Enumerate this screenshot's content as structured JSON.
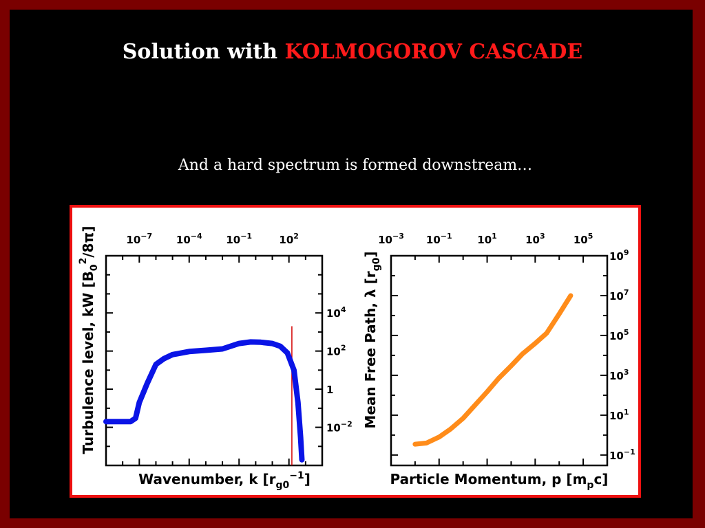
{
  "slide": {
    "title_prefix": "Solution with ",
    "title_highlight": "KOLMOGOROV CASCADE",
    "subtitle": "And a hard spectrum is formed downstream…"
  },
  "colors": {
    "background": "#000000",
    "frame": "#7a0000",
    "title_highlight": "#ff1a1a",
    "figure_border": "#ee1111",
    "left_curve": "#0a14e6",
    "right_curve": "#ff8c1a",
    "marker_line": "#d40000"
  },
  "chart_data": [
    {
      "type": "line",
      "xlabel": "Wavenumber, k [r",
      "xlabel_sub": "g0",
      "xlabel_sup": "−1",
      "xlabel_end": "]",
      "ylabel": "Turbulence level, kW [B",
      "ylabel_sub": "0",
      "ylabel_sup": "2",
      "ylabel_end": "/8π]",
      "x_scale": "log",
      "y_scale": "log",
      "xlim": [
        1e-09,
        10000
      ],
      "ylim": [
        0.0001,
        10000000
      ],
      "x_ticks": [
        {
          "base": "10",
          "exp": "−7",
          "value": 1e-07
        },
        {
          "base": "10",
          "exp": "−4",
          "value": 0.0001
        },
        {
          "base": "10",
          "exp": "−1",
          "value": 0.1
        },
        {
          "base": "10",
          "exp": "2",
          "value": 100
        }
      ],
      "y_ticks": [
        {
          "base": "10",
          "exp": "4",
          "value": 10000
        },
        {
          "base": "10",
          "exp": "2",
          "value": 100
        },
        {
          "base": "1",
          "exp": "",
          "value": 1
        },
        {
          "base": "10",
          "exp": "−2",
          "value": 0.01
        }
      ],
      "series": [
        {
          "color": "#0a14e6",
          "points": [
            [
              1e-09,
              0.02
            ],
            [
              3e-08,
              0.02
            ],
            [
              3e-08,
              0.02
            ],
            [
              6e-08,
              0.03
            ],
            [
              1e-07,
              0.2
            ],
            [
              3e-07,
              2
            ],
            [
              1e-06,
              20
            ],
            [
              3e-06,
              40
            ],
            [
              1e-05,
              65
            ],
            [
              0.0001,
              95
            ],
            [
              0.001,
              110
            ],
            [
              0.01,
              130
            ],
            [
              0.1,
              250
            ],
            [
              0.5,
              300
            ],
            [
              2,
              290
            ],
            [
              10,
              250
            ],
            [
              30,
              180
            ],
            [
              80,
              80
            ],
            [
              200,
              10
            ],
            [
              350,
              0.2
            ],
            [
              500,
              0.003
            ],
            [
              600,
              0.0002
            ]
          ]
        }
      ],
      "vline_x": 150,
      "vline_y_top": 2000
    },
    {
      "type": "line",
      "xlabel": "Particle Momentum, p [m",
      "xlabel_sub": "p",
      "xlabel_end": "c]",
      "ylabel": "Mean Free Path, λ [r",
      "ylabel_sub": "g0",
      "ylabel_end": "]",
      "x_scale": "log",
      "y_scale": "log",
      "xlim": [
        0.001,
        1000000
      ],
      "ylim": [
        0.03,
        1000000000
      ],
      "x_ticks": [
        {
          "base": "10",
          "exp": "−3",
          "value": 0.001
        },
        {
          "base": "10",
          "exp": "−1",
          "value": 0.1
        },
        {
          "base": "10",
          "exp": "1",
          "value": 10
        },
        {
          "base": "10",
          "exp": "3",
          "value": 1000
        },
        {
          "base": "10",
          "exp": "5",
          "value": 100000
        }
      ],
      "y_ticks": [
        {
          "base": "10",
          "exp": "9",
          "value": 1000000000
        },
        {
          "base": "10",
          "exp": "7",
          "value": 10000000
        },
        {
          "base": "10",
          "exp": "5",
          "value": 100000
        },
        {
          "base": "10",
          "exp": "3",
          "value": 1000
        },
        {
          "base": "10",
          "exp": "1",
          "value": 10
        },
        {
          "base": "10",
          "exp": "−1",
          "value": 0.1
        }
      ],
      "series": [
        {
          "color": "#ff8c1a",
          "points": [
            [
              0.01,
              0.35
            ],
            [
              0.03,
              0.4
            ],
            [
              0.1,
              0.8
            ],
            [
              0.3,
              2
            ],
            [
              1,
              7
            ],
            [
              3,
              30
            ],
            [
              10,
              150
            ],
            [
              30,
              700
            ],
            [
              100,
              3000
            ],
            [
              300,
              12000
            ],
            [
              1000,
              40000
            ],
            [
              3000,
              130000
            ],
            [
              10000,
              1200000
            ],
            [
              30000,
              10000000
            ]
          ]
        }
      ]
    }
  ]
}
